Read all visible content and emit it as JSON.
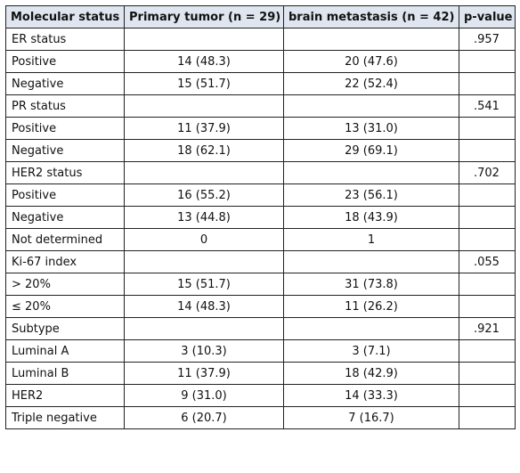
{
  "table": {
    "headers": {
      "status": "Molecular status",
      "primary": "Primary tumor (n = 29)",
      "brain": "brain metastasis (n = 42)",
      "pvalue": "p-value"
    },
    "rows": [
      {
        "label": "ER status",
        "primary": "",
        "brain": "",
        "pvalue": ".957"
      },
      {
        "label": "Positive",
        "primary": "14 (48.3)",
        "brain": "20 (47.6)",
        "pvalue": ""
      },
      {
        "label": "Negative",
        "primary": "15 (51.7)",
        "brain": "22 (52.4)",
        "pvalue": ""
      },
      {
        "label": "PR status",
        "primary": "",
        "brain": "",
        "pvalue": ".541"
      },
      {
        "label": "Positive",
        "primary": "11 (37.9)",
        "brain": "13 (31.0)",
        "pvalue": ""
      },
      {
        "label": "Negative",
        "primary": "18 (62.1)",
        "brain": "29 (69.1)",
        "pvalue": ""
      },
      {
        "label": "HER2 status",
        "primary": "",
        "brain": "",
        "pvalue": ".702"
      },
      {
        "label": "Positive",
        "primary": "16 (55.2)",
        "brain": "23 (56.1)",
        "pvalue": ""
      },
      {
        "label": "Negative",
        "primary": "13 (44.8)",
        "brain": "18 (43.9)",
        "pvalue": ""
      },
      {
        "label": "Not determined",
        "primary": "0",
        "brain": "1",
        "pvalue": ""
      },
      {
        "label": "Ki-67 index",
        "primary": "",
        "brain": "",
        "pvalue": ".055"
      },
      {
        "label": "> 20%",
        "primary": "15 (51.7)",
        "brain": "31 (73.8)",
        "pvalue": ""
      },
      {
        "label": "≤ 20%",
        "primary": "14 (48.3)",
        "brain": "11 (26.2)",
        "pvalue": ""
      },
      {
        "label": "Subtype",
        "primary": "",
        "brain": "",
        "pvalue": ".921"
      },
      {
        "label": "Luminal A",
        "primary": "3 (10.3)",
        "brain": "3 (7.1)",
        "pvalue": ""
      },
      {
        "label": "Luminal B",
        "primary": "11 (37.9)",
        "brain": "18 (42.9)",
        "pvalue": ""
      },
      {
        "label": "HER2",
        "primary": "9 (31.0)",
        "brain": "14 (33.3)",
        "pvalue": ""
      },
      {
        "label": "Triple negative",
        "primary": "6 (20.7)",
        "brain": "7 (16.7)",
        "pvalue": ""
      }
    ]
  }
}
